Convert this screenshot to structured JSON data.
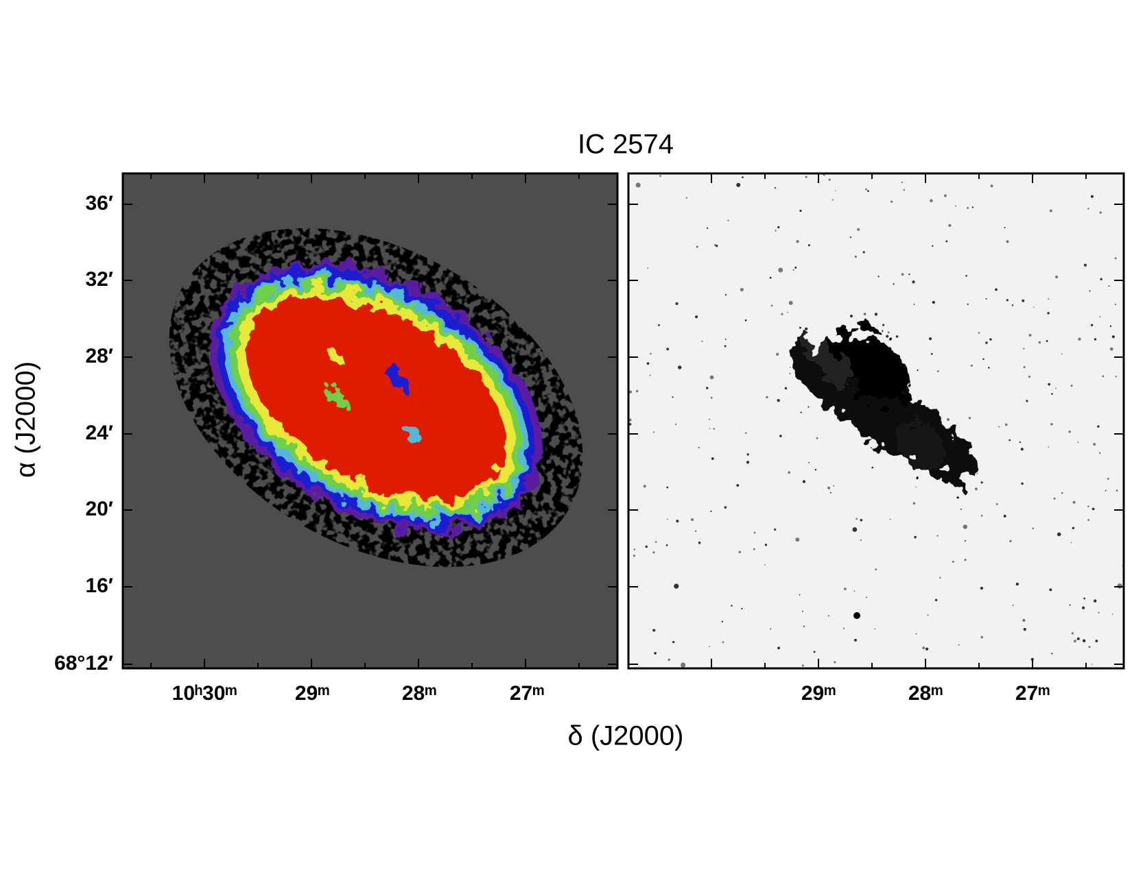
{
  "title": "IC 2574",
  "y_axis_label": "α (J2000)",
  "x_axis_label": "δ (J2000)",
  "left_panel": {
    "x_tick_labels": [
      "10ʰ30ᵐ",
      "29ᵐ",
      "28ᵐ",
      "27ᵐ"
    ],
    "y_tick_labels": [
      "36′",
      "32′",
      "28′",
      "24′",
      "20′",
      "16′",
      "68°12′"
    ]
  },
  "right_panel": {
    "x_tick_labels": [
      "29ᵐ",
      "28ᵐ",
      "27ᵐ"
    ]
  }
}
